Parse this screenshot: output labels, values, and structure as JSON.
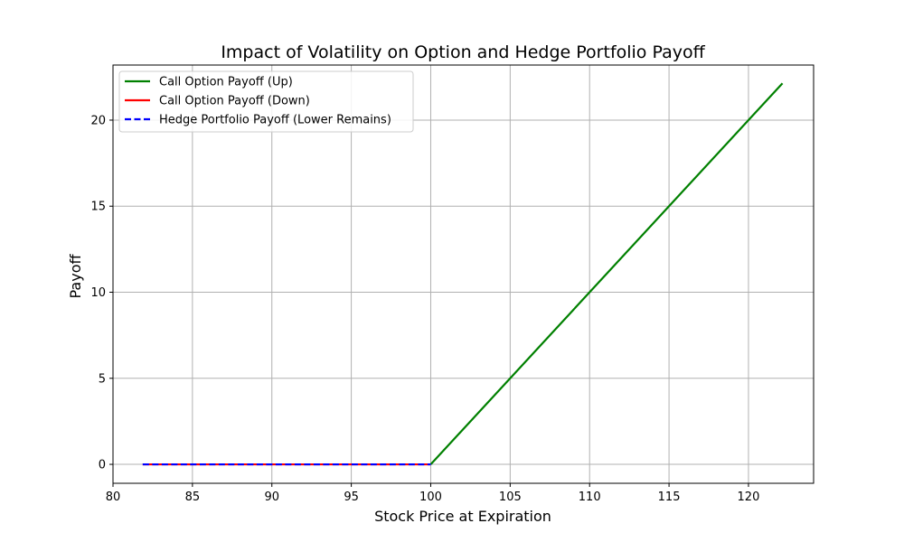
{
  "chart_data": {
    "type": "line",
    "title": "Impact of Volatility on Option and Hedge Portfolio Payoff",
    "xlabel": "Stock Price at Expiration",
    "ylabel": "Payoff",
    "xlim": [
      80,
      124.1
    ],
    "ylim": [
      -1.1,
      23.2
    ],
    "xticks": [
      80,
      85,
      90,
      95,
      100,
      105,
      110,
      115,
      120
    ],
    "yticks": [
      0,
      5,
      10,
      15,
      20
    ],
    "grid": true,
    "legend_position": "upper-left",
    "series": [
      {
        "name": "Call Option Payoff (Up)",
        "color": "#008000",
        "style": "solid",
        "x": [
          100,
          122.14
        ],
        "y": [
          0,
          22.14
        ]
      },
      {
        "name": "Call Option Payoff (Down)",
        "color": "#ff0000",
        "style": "solid",
        "x": [
          81.87,
          100
        ],
        "y": [
          0,
          0
        ]
      },
      {
        "name": "Hedge Portfolio Payoff (Lower Remains)",
        "color": "#0000ff",
        "style": "dashed",
        "x": [
          81.87,
          100
        ],
        "y": [
          0,
          0
        ]
      }
    ]
  }
}
